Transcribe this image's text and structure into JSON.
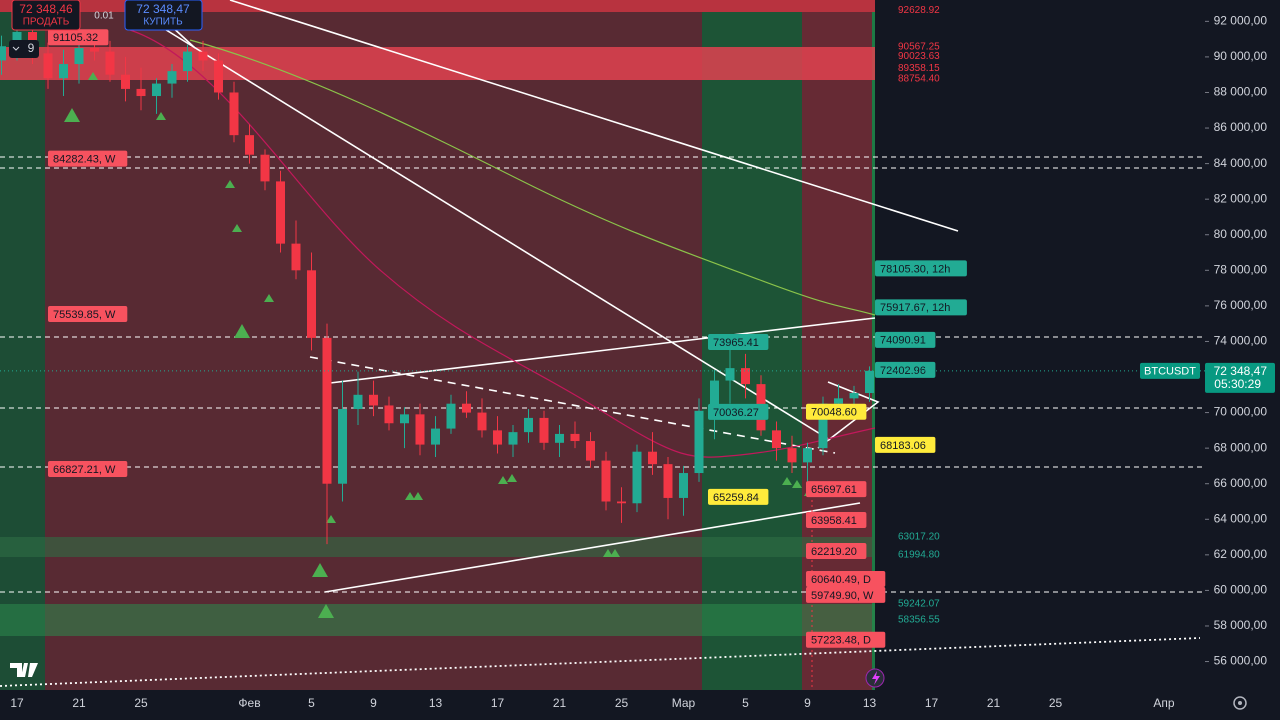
{
  "chart_data": {
    "type": "candlestick",
    "symbol": "BTCUSDT",
    "categories": [
      null,
      "17",
      null,
      null,
      null,
      "21",
      null,
      null,
      null,
      "25",
      null,
      null,
      null,
      null,
      null,
      null,
      "Фев",
      null,
      null,
      null,
      "5",
      null,
      null,
      null,
      "9",
      null,
      null,
      null,
      "13",
      null,
      null,
      null,
      "17",
      null,
      null,
      null,
      "21",
      null,
      null,
      null,
      "25",
      null,
      null,
      null,
      "Мар",
      null,
      null,
      null,
      "5",
      null,
      null,
      null,
      "9",
      null,
      null,
      null,
      "13",
      null,
      null,
      null,
      "17",
      null,
      null,
      null,
      "21",
      null,
      null,
      null,
      "25",
      null,
      null,
      null,
      null,
      null,
      null,
      "Апр",
      null
    ],
    "open": [
      89800,
      90600,
      91400,
      90200,
      88800,
      89600,
      90500,
      90300,
      89000,
      88200,
      87800,
      88500,
      89200,
      90300,
      89800,
      88000,
      85600,
      84500,
      83000,
      79500,
      78000,
      74200,
      66000,
      70200,
      71000,
      70400,
      69400,
      69900,
      68200,
      69100,
      70500,
      70000,
      69000,
      68200,
      68900,
      69700,
      68300,
      68800,
      68400,
      67300,
      65000,
      64900,
      67800,
      67100,
      65200,
      66600,
      70100,
      71800,
      72500,
      71600,
      69000,
      68000,
      67200,
      68000,
      70500,
      70800,
      71100,
      null,
      null,
      null,
      null,
      null,
      null,
      null,
      null,
      null,
      null,
      null,
      null,
      null,
      null,
      null,
      null,
      null,
      null,
      null,
      null
    ],
    "high": [
      91200,
      92000,
      91900,
      90800,
      90400,
      91000,
      91300,
      90900,
      90000,
      89400,
      88800,
      89600,
      90700,
      90900,
      90200,
      88600,
      86200,
      84800,
      83600,
      80800,
      79000,
      75000,
      71800,
      72300,
      71800,
      70900,
      70300,
      70500,
      69800,
      71000,
      71200,
      70800,
      69800,
      69300,
      70200,
      70100,
      69300,
      69500,
      68900,
      67800,
      65800,
      68200,
      68900,
      67500,
      67000,
      70800,
      72400,
      74000,
      73300,
      72100,
      69500,
      68700,
      68300,
      70900,
      71600,
      71500,
      72600,
      null,
      null,
      null,
      null,
      null,
      null,
      null,
      null,
      null,
      null,
      null,
      null,
      null,
      null,
      null,
      null,
      null,
      null,
      null,
      null
    ],
    "low": [
      89000,
      89800,
      89600,
      88200,
      87800,
      88500,
      89800,
      88600,
      87500,
      87000,
      86800,
      87700,
      88600,
      89200,
      87600,
      85200,
      84000,
      82500,
      79000,
      77500,
      73500,
      62600,
      65000,
      69300,
      69800,
      69000,
      68000,
      67600,
      67500,
      68800,
      69700,
      68600,
      67700,
      67500,
      68300,
      67900,
      67500,
      68000,
      66900,
      64500,
      63800,
      64400,
      66500,
      64000,
      64200,
      66100,
      68500,
      70500,
      70800,
      68700,
      67300,
      66600,
      65500,
      67600,
      69700,
      69900,
      70600,
      null,
      null,
      null,
      null,
      null,
      null,
      null,
      null,
      null,
      null,
      null,
      null,
      null,
      null,
      null,
      null,
      null,
      null,
      null,
      null
    ],
    "close": [
      90600,
      91400,
      90200,
      88800,
      89600,
      90500,
      90300,
      89000,
      88200,
      87800,
      88500,
      89200,
      90300,
      89800,
      88000,
      85600,
      84500,
      83000,
      79500,
      78000,
      74200,
      66000,
      70200,
      71000,
      70400,
      69400,
      69900,
      68200,
      69100,
      70500,
      70000,
      69000,
      68200,
      68900,
      69700,
      68300,
      68800,
      68400,
      67300,
      65000,
      64900,
      67800,
      67100,
      65200,
      66600,
      70100,
      71800,
      72500,
      71600,
      69000,
      68000,
      67200,
      68000,
      70500,
      70800,
      71100,
      72348.47,
      null,
      null,
      null,
      null,
      null,
      null,
      null,
      null,
      null,
      null,
      null,
      null,
      null,
      null,
      null,
      null,
      null,
      null,
      null,
      null
    ],
    "up_color": "#22ab94",
    "down_color": "#f23645",
    "ylim": [
      54400,
      93200
    ],
    "yticks": [
      {
        "value": 56000,
        "label": "56 000,00"
      },
      {
        "value": 58000,
        "label": "58 000,00"
      },
      {
        "value": 60000,
        "label": "60 000,00"
      },
      {
        "value": 62000,
        "label": "62 000,00"
      },
      {
        "value": 64000,
        "label": "64 000,00"
      },
      {
        "value": 66000,
        "label": "66 000,00"
      },
      {
        "value": 68000,
        "label": "68 000,00"
      },
      {
        "value": 70000,
        "label": "70 000,00"
      },
      {
        "value": 72000,
        "label": "72 000,00"
      },
      {
        "value": 74000,
        "label": "74 000,00"
      },
      {
        "value": 76000,
        "label": "76 000,00"
      },
      {
        "value": 78000,
        "label": "78 000,00"
      },
      {
        "value": 80000,
        "label": "80 000,00"
      },
      {
        "value": 82000,
        "label": "82 000,00"
      },
      {
        "value": 84000,
        "label": "84 000,00"
      },
      {
        "value": 86000,
        "label": "86 000,00"
      },
      {
        "value": 88000,
        "label": "88 000,00"
      },
      {
        "value": 90000,
        "label": "90 000,00"
      },
      {
        "value": 92000,
        "label": "92 000,00"
      }
    ],
    "last_price": {
      "value": 72348.47,
      "label": "72 348,47"
    },
    "countdown": "05:30:29",
    "left_tags": [
      {
        "label": "91105.32",
        "value": 91105.32,
        "color": "#f7525f"
      },
      {
        "label": "84282.43, W",
        "value": 84282.43,
        "color": "#f7525f"
      },
      {
        "label": "75539.85, W",
        "value": 75539.85,
        "color": "#f7525f"
      },
      {
        "label": "66827.21, W",
        "value": 66827.21,
        "color": "#f7525f"
      }
    ],
    "mid_tags": [
      {
        "label": "73965.41",
        "value": 73965.41,
        "color": "#22ab94"
      },
      {
        "label": "70036.27",
        "value": 70036.27,
        "color": "#22ab94"
      },
      {
        "label": "65259.84",
        "value": 65259.84,
        "color": "#ffeb3b"
      }
    ],
    "near_tags": [
      {
        "label": "70048.60",
        "value": 70048.6,
        "color": "#ffeb3b"
      },
      {
        "label": "65697.61",
        "value": 65697.61,
        "color": "#f7525f"
      },
      {
        "label": "63958.41",
        "value": 63958.41,
        "color": "#f7525f"
      },
      {
        "label": "62219.20",
        "value": 62219.2,
        "color": "#f7525f"
      },
      {
        "label": "60640.49, D",
        "value": 60640.49,
        "color": "#f7525f"
      },
      {
        "label": "59749.90, W",
        "value": 59749.9,
        "color": "#f7525f"
      },
      {
        "label": "57223.48, D",
        "value": 57223.48,
        "color": "#f7525f"
      }
    ],
    "right_tags": [
      {
        "label": "78105.30, 12h",
        "value": 78105.3,
        "color": "#22ab94"
      },
      {
        "label": "75917.67, 12h",
        "value": 75917.67,
        "color": "#22ab94"
      },
      {
        "label": "74090.91",
        "value": 74090.91,
        "color": "#22ab94"
      },
      {
        "label": "72402.96",
        "value": 72402.96,
        "color": "#22ab94"
      },
      {
        "label": "68183.06",
        "value": 68183.06,
        "color": "#ffeb3b"
      }
    ],
    "right_texts": [
      {
        "label": "92628.92",
        "value": 92628.92,
        "color": "#f23645"
      },
      {
        "label": "90567.25",
        "value": 90567.25,
        "color": "#f23645"
      },
      {
        "label": "90023.63",
        "value": 90023.63,
        "color": "#f23645"
      },
      {
        "label": "89358.15",
        "value": 89358.15,
        "color": "#f23645"
      },
      {
        "label": "88754.40",
        "value": 88754.4,
        "color": "#f23645"
      },
      {
        "label": "63017.20",
        "value": 63017.2,
        "color": "#22ab94"
      },
      {
        "label": "61994.80",
        "value": 61994.8,
        "color": "#22ab94"
      },
      {
        "label": "59242.07",
        "value": 59242.07,
        "color": "#22ab94"
      },
      {
        "label": "58356.55",
        "value": 58356.55,
        "color": "#22ab94"
      }
    ]
  },
  "ui": {
    "sell_price": "72 348,46",
    "sell_label": "ПРОДАТЬ",
    "spread": "0.01",
    "buy_price": "72 348,47",
    "buy_label": "КУПИТЬ",
    "indicators": "9"
  }
}
